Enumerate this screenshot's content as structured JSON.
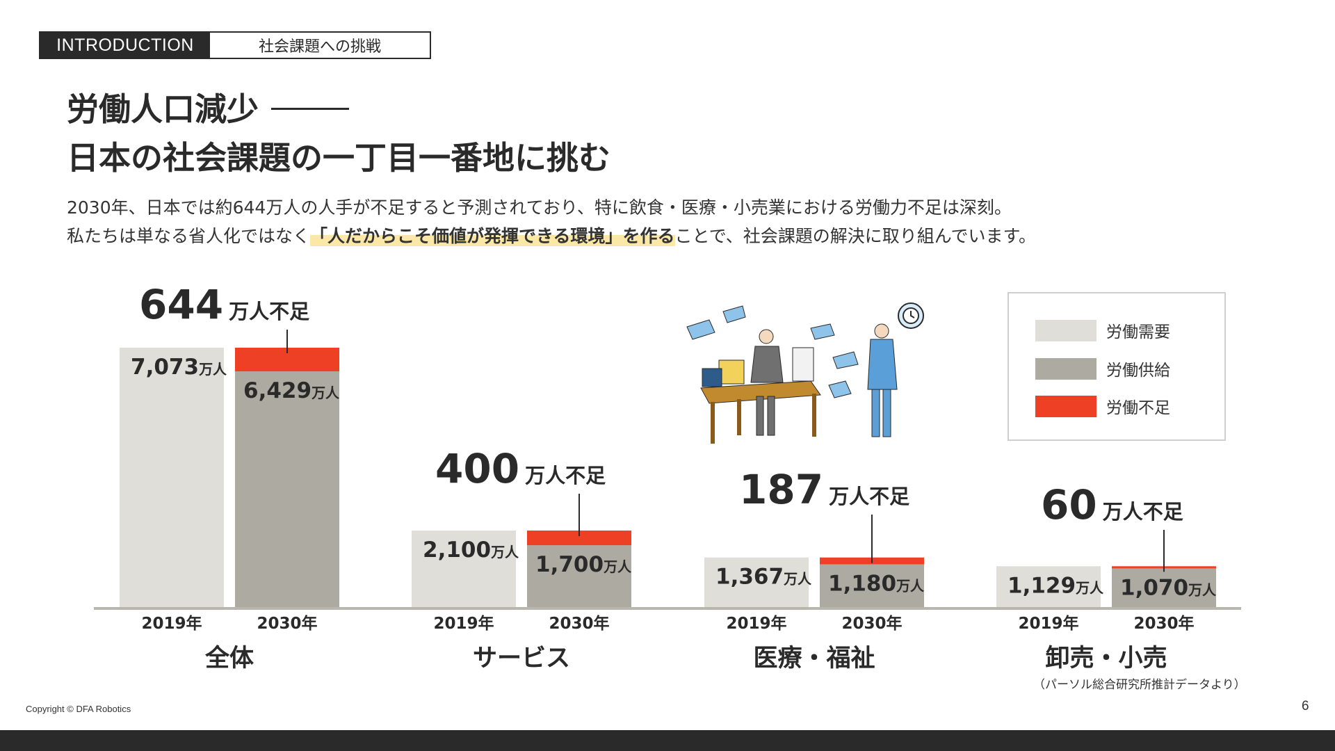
{
  "tag": {
    "label": "INTRODUCTION",
    "subtitle": "社会課題への挑戦"
  },
  "headline": {
    "line1": "労働人口減少",
    "line2": "日本の社会課題の一丁目一番地に挑む"
  },
  "description": {
    "line1": "2030年、日本では約644万人の人手が不足すると予測されており、特に飲食・医療・小売業における労働力不足は深刻。",
    "line2_pre": "私たちは単なる省人化ではなく",
    "line2_highlight": "「人だからこそ価値が発揮できる環境」を作る",
    "line2_post": "ことで、社会課題の解決に取り組んでいます。"
  },
  "colors": {
    "demand": "#e0ded9",
    "supply": "#adaba1",
    "shortage": "#ee4025",
    "axis": "#b9b6ad",
    "text": "#2a2a2a"
  },
  "legend": [
    {
      "label": "労働需要",
      "color": "#e0ded9"
    },
    {
      "label": "労働供給",
      "color": "#adaba1"
    },
    {
      "label": "労働不足",
      "color": "#ee4025"
    }
  ],
  "chart_data": {
    "type": "bar",
    "unit": "万人",
    "shortage_suffix": "万人不足",
    "year_suffix": "年",
    "groups": [
      {
        "name": "全体",
        "shortage": 644,
        "bars": [
          {
            "year": "2019",
            "demand": 7073
          },
          {
            "year": "2030",
            "demand": 7073,
            "supply": 6429
          }
        ]
      },
      {
        "name": "サービス",
        "shortage": 400,
        "bars": [
          {
            "year": "2019",
            "demand": 2100
          },
          {
            "year": "2030",
            "demand": 2100,
            "supply": 1700
          }
        ]
      },
      {
        "name": "医療・福祉",
        "shortage": 187,
        "bars": [
          {
            "year": "2019",
            "demand": 1367
          },
          {
            "year": "2030",
            "demand": 1367,
            "supply": 1180
          }
        ]
      },
      {
        "name": "卸売・小売",
        "shortage": 60,
        "bars": [
          {
            "year": "2019",
            "demand": 1129
          },
          {
            "year": "2030",
            "demand": 1129,
            "supply": 1070
          }
        ]
      }
    ]
  },
  "illustration": {
    "icon": "overworked-office-workers-illustration"
  },
  "source": "（パーソル総合研究所推計データより）",
  "footer": {
    "copyright": "Copyright © DFA Robotics",
    "page": "6"
  }
}
